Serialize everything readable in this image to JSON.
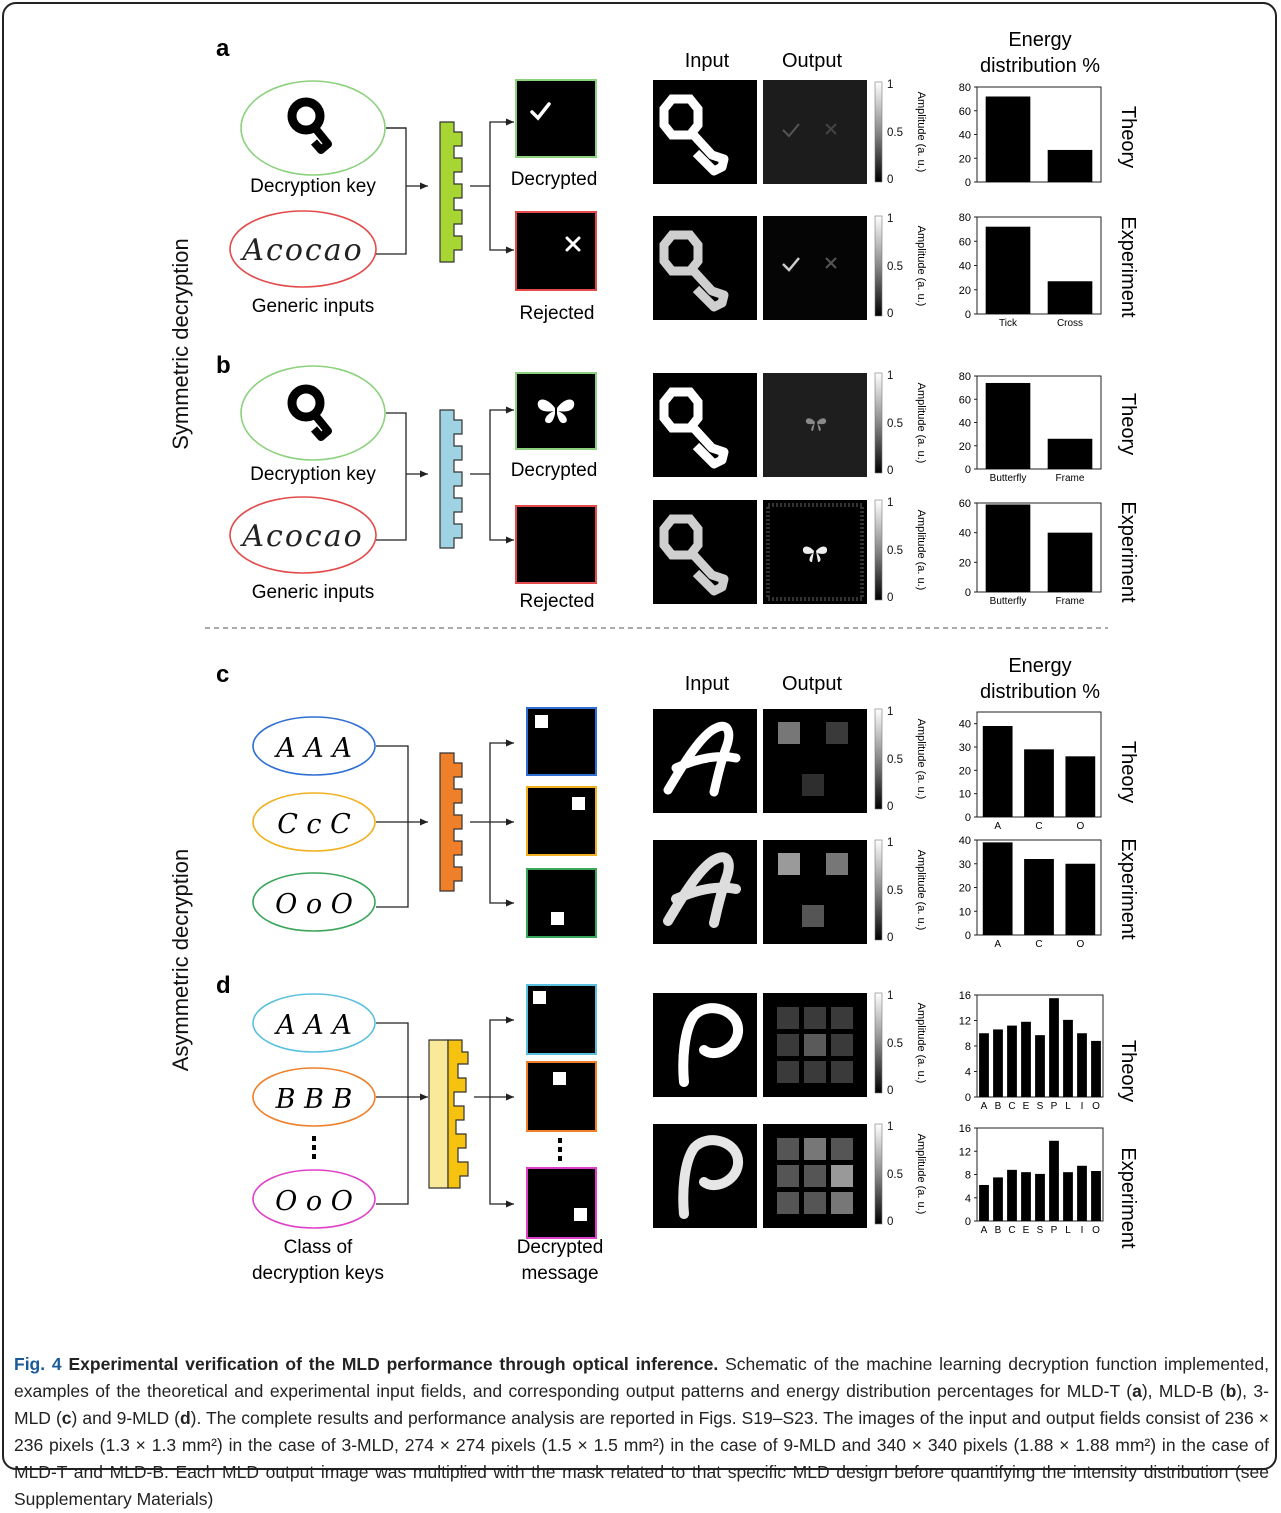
{
  "panels": {
    "a": {
      "label": "a",
      "input_header": "Input",
      "output_header": "Output",
      "energy_header": [
        "Energy",
        "distribution %"
      ],
      "key_label": "Decryption key",
      "generic_label": "Generic inputs",
      "decrypted_label": "Decrypted",
      "rejected_label": "Rejected",
      "handwriting": "Acocao"
    },
    "b": {
      "label": "b",
      "key_label": "Decryption key",
      "generic_label": "Generic inputs",
      "decrypted_label": "Decrypted",
      "rejected_label": "Rejected",
      "handwriting": "Acocao"
    },
    "c": {
      "label": "c",
      "input_header": "Input",
      "output_header": "Output",
      "energy_header": [
        "Energy",
        "distribution %"
      ],
      "inputs": [
        "A A A",
        "C c C",
        "O o O"
      ]
    },
    "d": {
      "label": "d",
      "inputs": [
        "A A A",
        "B B B",
        "O o O"
      ],
      "class_label": [
        "Class of",
        "decryption keys"
      ],
      "message_label": [
        "Decrypted",
        "message"
      ]
    }
  },
  "sections": {
    "symmetric": "Symmetric decryption",
    "asymmetric": "Asymmetric decryption"
  },
  "row_labels": {
    "theory": "Theory",
    "experiment": "Experiment"
  },
  "colorbar": {
    "label": "Amplitude (a. u.)",
    "ticks": [
      "1",
      "0.5",
      "0"
    ]
  },
  "chart_data": [
    {
      "id": "a-theory",
      "type": "bar",
      "categories": [
        "Tick",
        "Cross"
      ],
      "show_categories": false,
      "values": [
        72,
        27
      ],
      "ylim": [
        0,
        80
      ],
      "yticks": [
        0,
        20,
        40,
        60,
        80
      ]
    },
    {
      "id": "a-experiment",
      "type": "bar",
      "categories": [
        "Tick",
        "Cross"
      ],
      "show_categories": true,
      "values": [
        72,
        27
      ],
      "ylim": [
        0,
        80
      ],
      "yticks": [
        0,
        20,
        40,
        60,
        80
      ]
    },
    {
      "id": "b-theory",
      "type": "bar",
      "categories": [
        "Butterfly",
        "Frame"
      ],
      "show_categories": true,
      "values": [
        74,
        26
      ],
      "ylim": [
        0,
        80
      ],
      "yticks": [
        0,
        20,
        40,
        60,
        80
      ]
    },
    {
      "id": "b-experiment",
      "type": "bar",
      "categories": [
        "Butterfly",
        "Frame"
      ],
      "show_categories": true,
      "values": [
        59,
        40
      ],
      "ylim": [
        0,
        60
      ],
      "yticks": [
        0,
        20,
        40,
        60
      ]
    },
    {
      "id": "c-theory",
      "type": "bar",
      "categories": [
        "A",
        "C",
        "O"
      ],
      "show_categories": true,
      "values": [
        39,
        29,
        26
      ],
      "ylim": [
        0,
        45
      ],
      "yticks": [
        0,
        10,
        20,
        30,
        40
      ]
    },
    {
      "id": "c-experiment",
      "type": "bar",
      "categories": [
        "A",
        "C",
        "O"
      ],
      "show_categories": true,
      "values": [
        39,
        32,
        30
      ],
      "ylim": [
        0,
        40
      ],
      "yticks": [
        0,
        10,
        20,
        30,
        40
      ]
    },
    {
      "id": "d-theory",
      "type": "bar",
      "categories": [
        "A",
        "B",
        "C",
        "E",
        "S",
        "P",
        "L",
        "I",
        "O"
      ],
      "show_categories": true,
      "values": [
        10,
        10.6,
        11.2,
        11.8,
        9.7,
        15.5,
        12.1,
        10,
        8.8
      ],
      "ylim": [
        0,
        16
      ],
      "yticks": [
        0,
        4,
        8,
        12,
        16
      ]
    },
    {
      "id": "d-experiment",
      "type": "bar",
      "categories": [
        "A",
        "B",
        "C",
        "E",
        "S",
        "P",
        "L",
        "I",
        "O"
      ],
      "show_categories": true,
      "values": [
        6.2,
        7.5,
        8.8,
        8.4,
        8.1,
        13.8,
        8.4,
        9.5,
        8.6
      ],
      "ylim": [
        0,
        16
      ],
      "yticks": [
        0,
        4,
        8,
        12,
        16
      ]
    }
  ],
  "caption": {
    "title_prefix": "Fig. 4 ",
    "title_text": "Experimental verification of the MLD performance through optical inference.",
    "text_1": " Schematic of the machine learning decryption function implemented, examples of the theoretical and experimental input fields, and corresponding output patterns and energy distribution percentages for MLD-T (",
    "a": "a",
    "text_2": "), MLD-B (",
    "b": "b",
    "text_3": "), 3-MLD (",
    "c": "c",
    "text_4": ") and 9-MLD (",
    "d": "d",
    "text_5": "). The complete results and performance analysis are reported in Figs. S19–S23. The images of the input and output fields consist of 236 × 236 pixels (1.3 × 1.3 mm²) in the case of 3-MLD, 274 × 274 pixels (1.5 × 1.5 mm²) in the case of 9-MLD and 340 × 340 pixels (1.88 × 1.88 mm²) in the case of MLD-T and MLD-B. Each MLD output image was multiplied with the mask related to that specific MLD design before quantifying the intensity distribution (see Supplementary Materials)"
  }
}
